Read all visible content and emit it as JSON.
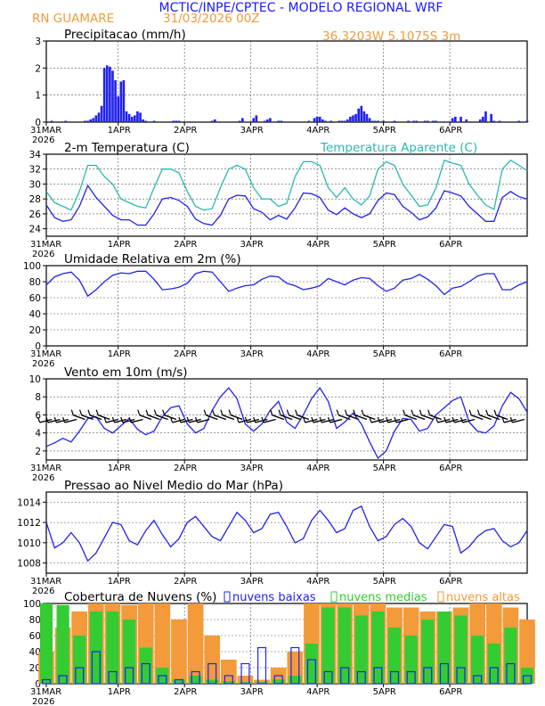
{
  "header": {
    "title": "MCTIC/INPE/CPTEC - MODELO REGIONAL WRF",
    "location": "RN GUAMARE",
    "run": "31/03/2026 00Z",
    "coords": "36.3203W 5.1075S 3m"
  },
  "colors": {
    "title": "#1a1aff",
    "orange": "#f39a3a",
    "blue": "#2222ee",
    "cyan": "#2ab8b0",
    "green": "#33cc33",
    "grid": "#555555"
  },
  "x_axis": {
    "tick_labels": [
      "31MAR",
      "1APR",
      "2APR",
      "3APR",
      "4APR",
      "5APR",
      "6APR"
    ],
    "year": "2026",
    "hours_span": 174
  },
  "chart_data": [
    {
      "id": "precip",
      "type": "bar",
      "title": "Precipitacao (mm/h)",
      "ylim": [
        0,
        3
      ],
      "yticks": [
        0,
        1,
        2,
        3
      ],
      "series": [
        {
          "name": "precip",
          "color": "#2222ee",
          "x": [
            2,
            7,
            14,
            15,
            16,
            17,
            18,
            19,
            20,
            21,
            22,
            23,
            24,
            25,
            26,
            27,
            28,
            29,
            30,
            31,
            32,
            33,
            34,
            35,
            36,
            39,
            46,
            47,
            48,
            60,
            61,
            70,
            71,
            75,
            76,
            79,
            80,
            81,
            84,
            85,
            95,
            97,
            98,
            99,
            100,
            101,
            103,
            106,
            107,
            108,
            109,
            110,
            111,
            112,
            113,
            114,
            115,
            116,
            117,
            118,
            119,
            120,
            122,
            126,
            131,
            133,
            134,
            137,
            138,
            140,
            141,
            147,
            148,
            150,
            152,
            157,
            158,
            159,
            161,
            162,
            164,
            171,
            174
          ],
          "values": [
            0.05,
            0.05,
            0.05,
            0.05,
            0.1,
            0.15,
            0.25,
            0.35,
            0.6,
            2.0,
            2.1,
            2.05,
            1.9,
            1.55,
            0.95,
            1.5,
            1.55,
            0.4,
            0.3,
            0.2,
            0.25,
            0.4,
            0.35,
            0.1,
            0.05,
            0.05,
            0.05,
            0.05,
            0.05,
            0.05,
            0.1,
            0.05,
            0.15,
            0.15,
            0.25,
            0.05,
            0.1,
            0.15,
            0.05,
            0.05,
            0.05,
            0.15,
            0.2,
            0.2,
            0.1,
            0.05,
            0.05,
            0.05,
            0.05,
            0.05,
            0.1,
            0.2,
            0.25,
            0.3,
            0.5,
            0.6,
            0.4,
            0.3,
            0.15,
            0.05,
            0.05,
            0.05,
            0.05,
            0.05,
            0.05,
            0.05,
            0.05,
            0.05,
            0.05,
            0.05,
            0.05,
            0.15,
            0.2,
            0.2,
            0.1,
            0.1,
            0.2,
            0.4,
            0.3,
            0.05,
            0.05,
            0.05,
            0.05
          ]
        }
      ]
    },
    {
      "id": "temp",
      "type": "line",
      "title": "2-m Temperatura (C)",
      "legend": "Temperatura Aparente (C)",
      "ylim": [
        23,
        34
      ],
      "yticks": [
        24,
        26,
        28,
        30,
        32,
        34
      ],
      "series": [
        {
          "name": "Temperatura Aparente (C)",
          "color": "#2ab8b0",
          "x": [
            0,
            3,
            6,
            9,
            12,
            15,
            18,
            21,
            24,
            27,
            30,
            33,
            36,
            39,
            42,
            45,
            48,
            51,
            54,
            57,
            60,
            63,
            66,
            69,
            72,
            75,
            78,
            81,
            84,
            87,
            90,
            93,
            96,
            99,
            102,
            105,
            108,
            111,
            114,
            117,
            120,
            123,
            126,
            129,
            132,
            135,
            138,
            141,
            144,
            147,
            150,
            153,
            156,
            159,
            162,
            165,
            168,
            171,
            174
          ],
          "values": [
            29,
            27.5,
            27,
            26.5,
            29,
            32.5,
            32.5,
            31,
            30,
            28,
            27.5,
            27,
            26.8,
            29.5,
            32,
            32,
            31.5,
            29,
            27,
            26.5,
            26.7,
            29.5,
            32,
            32.5,
            32,
            29.5,
            28,
            28,
            27,
            27.4,
            31,
            33,
            33,
            32.5,
            29.5,
            28.2,
            29.5,
            28,
            27.2,
            28.4,
            32,
            33,
            32.5,
            30,
            28.5,
            27,
            27.2,
            29.5,
            33.2,
            32.8,
            32.5,
            30,
            28.5,
            27.2,
            26.6,
            32,
            33.2,
            32.5,
            31.8
          ]
        },
        {
          "name": "2-m Temperatura (C)",
          "color": "#2222ee",
          "x": [
            0,
            3,
            6,
            9,
            12,
            15,
            18,
            21,
            24,
            27,
            30,
            33,
            36,
            39,
            42,
            45,
            48,
            51,
            54,
            57,
            60,
            63,
            66,
            69,
            72,
            75,
            78,
            81,
            84,
            87,
            90,
            93,
            96,
            99,
            102,
            105,
            108,
            111,
            114,
            117,
            120,
            123,
            126,
            129,
            132,
            135,
            138,
            141,
            144,
            147,
            150,
            153,
            156,
            159,
            162,
            165,
            168,
            171,
            174
          ],
          "values": [
            27.2,
            25.5,
            25,
            25.2,
            27,
            29.8,
            28.2,
            27,
            25.8,
            25.2,
            25.2,
            24.5,
            24.5,
            26,
            28,
            28.2,
            27.8,
            27,
            25.3,
            24.7,
            24.5,
            25.8,
            28,
            28.5,
            28.4,
            26.7,
            26.2,
            25.2,
            25.8,
            25.3,
            26.8,
            28.8,
            28.7,
            28.2,
            26.5,
            25.9,
            26.8,
            26,
            25.5,
            26,
            27.8,
            28.8,
            28.6,
            27,
            26.2,
            25.2,
            25.6,
            26.8,
            29.1,
            28.8,
            28.4,
            27,
            26,
            25,
            25,
            28.2,
            29,
            28.3,
            28
          ]
        }
      ]
    },
    {
      "id": "rh",
      "type": "line",
      "title": "Umidade Relativa em 2m (%)",
      "ylim": [
        0,
        100
      ],
      "yticks": [
        0,
        20,
        40,
        60,
        80,
        100
      ],
      "series": [
        {
          "name": "Umidade Relativa",
          "color": "#2222ee",
          "x": [
            0,
            3,
            6,
            9,
            12,
            15,
            18,
            21,
            24,
            27,
            30,
            33,
            36,
            39,
            42,
            45,
            48,
            51,
            54,
            57,
            60,
            63,
            66,
            69,
            72,
            75,
            78,
            81,
            84,
            87,
            90,
            93,
            96,
            99,
            102,
            105,
            108,
            111,
            114,
            117,
            120,
            123,
            126,
            129,
            132,
            135,
            138,
            141,
            144,
            147,
            150,
            153,
            156,
            159,
            162,
            165,
            168,
            171,
            174
          ],
          "values": [
            76,
            86,
            90,
            92,
            82,
            62,
            70,
            80,
            88,
            91,
            90,
            93,
            93,
            83,
            70,
            71,
            73,
            78,
            90,
            93,
            92,
            80,
            68,
            72,
            75,
            76,
            83,
            87,
            86,
            78,
            75,
            70,
            72,
            75,
            84,
            80,
            76,
            82,
            85,
            84,
            75,
            68,
            72,
            82,
            84,
            89,
            83,
            75,
            64,
            72,
            74,
            80,
            87,
            90,
            90,
            70,
            70,
            76,
            80
          ]
        }
      ]
    },
    {
      "id": "wind",
      "type": "line",
      "title": "Vento em 10m (m/s)",
      "ylim": [
        1,
        10
      ],
      "yticks": [
        2,
        4,
        6,
        8,
        10
      ],
      "series": [
        {
          "name": "Vento em 10m",
          "color": "#2222ee",
          "x": [
            0,
            3,
            6,
            9,
            12,
            15,
            18,
            21,
            24,
            27,
            30,
            33,
            36,
            39,
            42,
            45,
            48,
            51,
            54,
            57,
            60,
            63,
            66,
            69,
            72,
            75,
            78,
            81,
            84,
            87,
            90,
            93,
            96,
            99,
            102,
            105,
            108,
            111,
            114,
            117,
            120,
            123,
            126,
            129,
            132,
            135,
            138,
            141,
            144,
            147,
            150,
            153,
            156,
            159,
            162,
            165,
            168,
            171,
            174
          ],
          "values": [
            2.5,
            2.9,
            3.4,
            3.0,
            4.2,
            5.6,
            5.8,
            4.5,
            4.0,
            4.8,
            5.6,
            4.4,
            3.8,
            4.2,
            5.8,
            6.8,
            7.0,
            5.0,
            4.0,
            4.5,
            6.5,
            8.0,
            9.0,
            7.8,
            5.0,
            4.2,
            5.0,
            6.5,
            7.5,
            5.2,
            4.5,
            6.0,
            7.8,
            9.0,
            7.5,
            4.5,
            5.2,
            6.2,
            5.0,
            3.0,
            1.2,
            2.0,
            4.2,
            5.6,
            5.5,
            4.2,
            4.5,
            6.0,
            6.8,
            7.6,
            8.0,
            5.2,
            4.2,
            4.0,
            4.8,
            7.0,
            8.5,
            7.8,
            6.3
          ]
        }
      ],
      "barb_base_ms": 5.5
    },
    {
      "id": "pres",
      "type": "line",
      "title": "Pressao ao Nivel Medio do Mar (hPa)",
      "ylim": [
        1007,
        1015
      ],
      "yticks": [
        1008,
        1010,
        1012,
        1014
      ],
      "series": [
        {
          "name": "Pressao",
          "color": "#2222ee",
          "x": [
            0,
            3,
            6,
            9,
            12,
            15,
            18,
            21,
            24,
            27,
            30,
            33,
            36,
            39,
            42,
            45,
            48,
            51,
            54,
            57,
            60,
            63,
            66,
            69,
            72,
            75,
            78,
            81,
            84,
            87,
            90,
            93,
            96,
            99,
            102,
            105,
            108,
            111,
            114,
            117,
            120,
            123,
            126,
            129,
            132,
            135,
            138,
            141,
            144,
            147,
            150,
            153,
            156,
            159,
            162,
            165,
            168,
            171,
            174
          ],
          "values": [
            1012.0,
            1009.5,
            1010.0,
            1011.0,
            1010.0,
            1008.2,
            1009.0,
            1010.5,
            1012.0,
            1011.8,
            1010.2,
            1009.8,
            1011.2,
            1012.2,
            1010.8,
            1009.6,
            1010.4,
            1012.0,
            1012.6,
            1011.6,
            1010.6,
            1010.2,
            1011.6,
            1013.0,
            1012.2,
            1011.0,
            1011.4,
            1012.8,
            1013.0,
            1011.6,
            1010.0,
            1010.4,
            1012.2,
            1013.2,
            1012.2,
            1011.0,
            1011.4,
            1013.2,
            1013.6,
            1011.6,
            1010.2,
            1010.6,
            1011.8,
            1012.4,
            1011.6,
            1010.0,
            1009.4,
            1010.6,
            1011.8,
            1011.6,
            1009.0,
            1009.6,
            1010.6,
            1011.2,
            1011.4,
            1010.2,
            1009.6,
            1010.0,
            1011.2
          ]
        }
      ]
    },
    {
      "id": "clouds",
      "type": "bar",
      "title": "Cobertura de Nuvens (%)",
      "ylim": [
        0,
        100
      ],
      "yticks": [
        0,
        20,
        40,
        60,
        80,
        100
      ],
      "series": [
        {
          "name": "nuvens altas",
          "color": "#f39a3a",
          "x": [
            0,
            6,
            12,
            18,
            24,
            30,
            36,
            42,
            48,
            54,
            60,
            66,
            72,
            78,
            84,
            90,
            96,
            102,
            108,
            114,
            120,
            126,
            132,
            138,
            144,
            150,
            156,
            162,
            168,
            174
          ],
          "values": [
            40,
            70,
            90,
            100,
            100,
            98,
            100,
            100,
            80,
            100,
            60,
            30,
            10,
            5,
            20,
            40,
            100,
            100,
            100,
            100,
            100,
            95,
            95,
            90,
            90,
            95,
            100,
            100,
            95,
            80
          ]
        },
        {
          "name": "nuvens medias",
          "color": "#33cc33",
          "x": [
            0,
            6,
            12,
            18,
            24,
            30,
            36,
            42,
            48,
            54,
            60,
            66,
            72,
            78,
            84,
            90,
            96,
            102,
            108,
            114,
            120,
            126,
            132,
            138,
            144,
            150,
            156,
            162,
            168,
            174
          ],
          "values": [
            100,
            98,
            60,
            90,
            90,
            80,
            45,
            20,
            5,
            10,
            5,
            3,
            2,
            2,
            5,
            10,
            50,
            95,
            95,
            85,
            90,
            70,
            60,
            80,
            90,
            85,
            60,
            50,
            70,
            20
          ]
        },
        {
          "name": "nuvens baixas",
          "color": "#2222ee",
          "x": [
            0,
            6,
            12,
            18,
            24,
            30,
            36,
            42,
            48,
            54,
            60,
            66,
            72,
            78,
            84,
            90,
            96,
            102,
            108,
            114,
            120,
            126,
            132,
            138,
            144,
            150,
            156,
            162,
            168,
            174
          ],
          "values": [
            5,
            10,
            20,
            40,
            15,
            20,
            25,
            10,
            5,
            15,
            25,
            10,
            25,
            45,
            10,
            45,
            30,
            15,
            20,
            15,
            20,
            15,
            15,
            20,
            25,
            20,
            10,
            20,
            25,
            10
          ]
        }
      ]
    }
  ]
}
